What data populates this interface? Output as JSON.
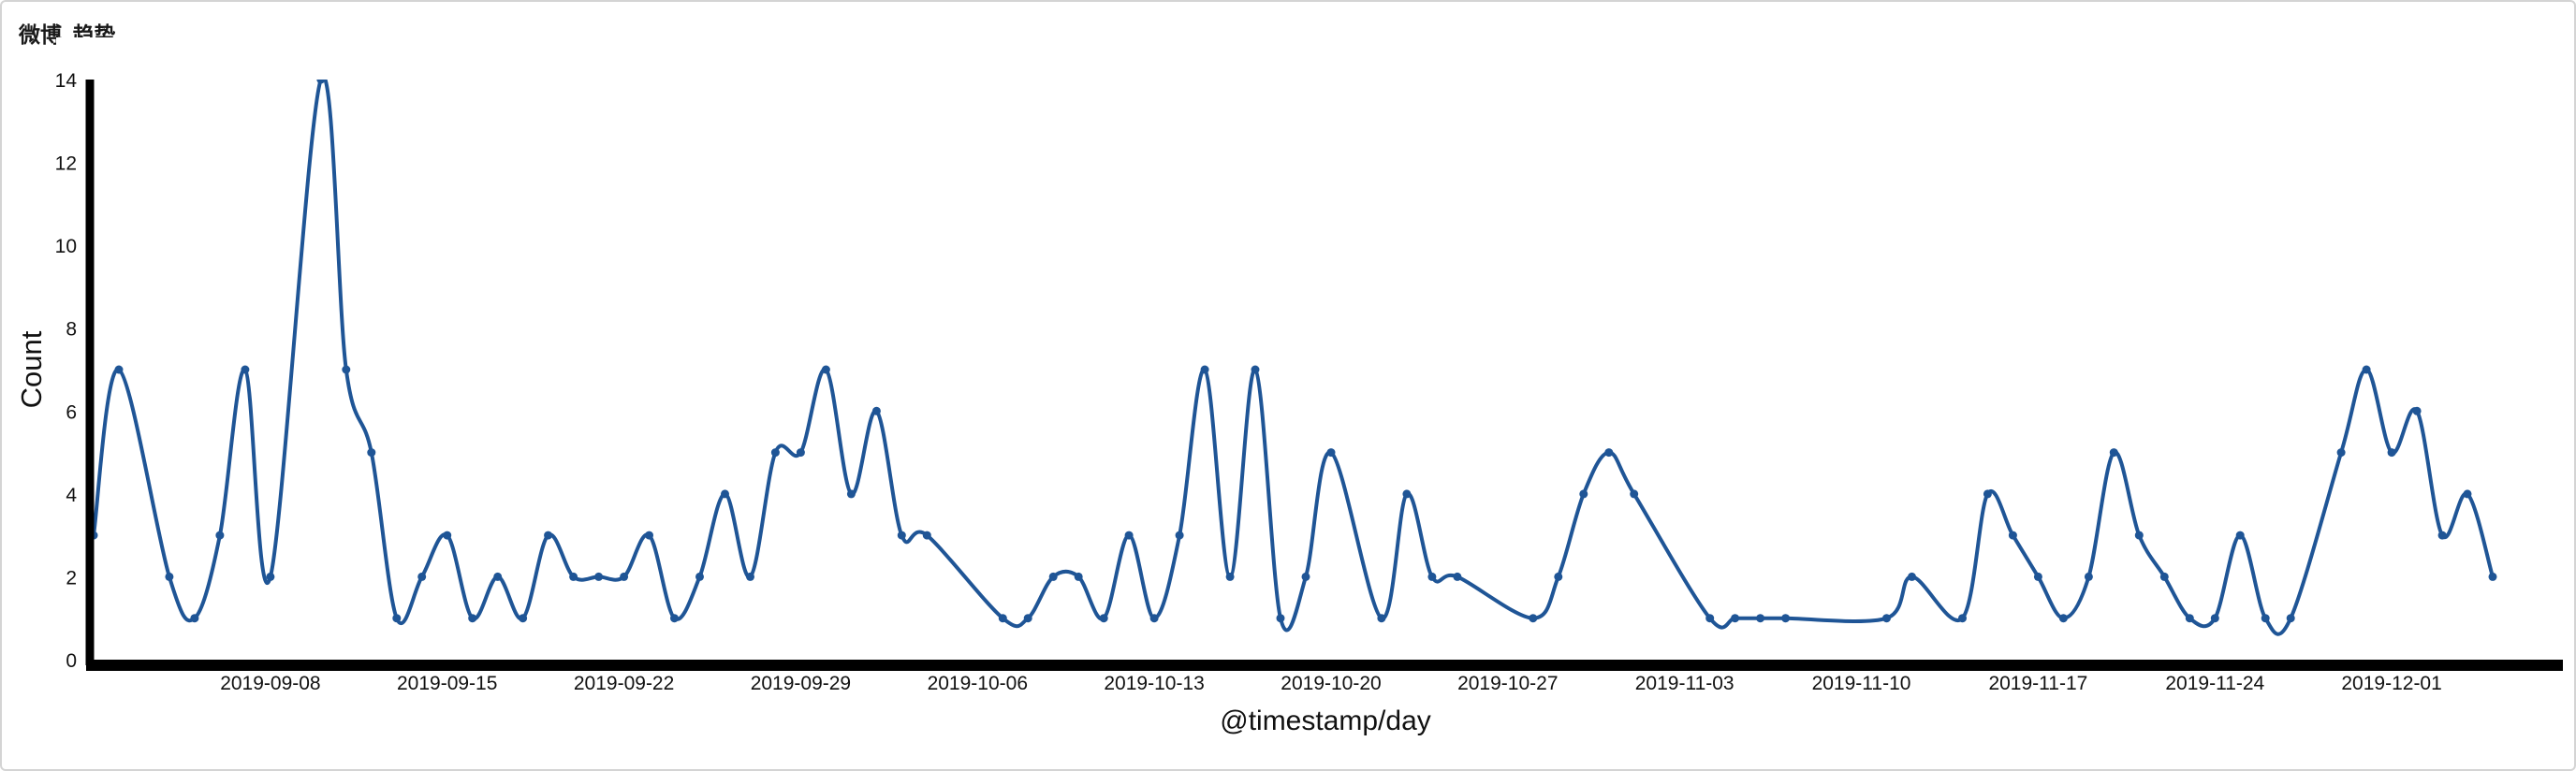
{
  "panel": {
    "title": "微博_趋势"
  },
  "colors": {
    "line": "#1f5596",
    "axis": "#000000",
    "text": "#111111"
  },
  "chart_data": {
    "type": "line",
    "title": "微博_趋势",
    "xlabel": "@timestamp/day",
    "ylabel": "Count",
    "ylim": [
      0,
      14
    ],
    "yticks": [
      0,
      2,
      4,
      6,
      8,
      10,
      12,
      14
    ],
    "xlim": [
      "2019-09-01",
      "2019-12-06"
    ],
    "xtick_labels": [
      "2019-09-08",
      "2019-09-15",
      "2019-09-22",
      "2019-09-29",
      "2019-10-06",
      "2019-10-13",
      "2019-10-20",
      "2019-10-27",
      "2019-11-03",
      "2019-11-10",
      "2019-11-17",
      "2019-11-24",
      "2019-12-01"
    ],
    "grid": false,
    "legend": "none",
    "series": [
      {
        "points": [
          [
            "2019-09-01",
            3
          ],
          [
            "2019-09-02",
            7
          ],
          [
            "2019-09-04",
            2
          ],
          [
            "2019-09-05",
            1
          ],
          [
            "2019-09-06",
            3
          ],
          [
            "2019-09-07",
            7
          ],
          [
            "2019-09-08",
            2
          ],
          [
            "2019-09-10",
            14
          ],
          [
            "2019-09-11",
            7
          ],
          [
            "2019-09-12",
            5
          ],
          [
            "2019-09-13",
            1
          ],
          [
            "2019-09-14",
            2
          ],
          [
            "2019-09-15",
            3
          ],
          [
            "2019-09-16",
            1
          ],
          [
            "2019-09-17",
            2
          ],
          [
            "2019-09-18",
            1
          ],
          [
            "2019-09-19",
            3
          ],
          [
            "2019-09-20",
            2
          ],
          [
            "2019-09-21",
            2
          ],
          [
            "2019-09-22",
            2
          ],
          [
            "2019-09-23",
            3
          ],
          [
            "2019-09-24",
            1
          ],
          [
            "2019-09-25",
            2
          ],
          [
            "2019-09-26",
            4
          ],
          [
            "2019-09-27",
            2
          ],
          [
            "2019-09-28",
            5
          ],
          [
            "2019-09-29",
            5
          ],
          [
            "2019-09-30",
            7
          ],
          [
            "2019-10-01",
            4
          ],
          [
            "2019-10-02",
            6
          ],
          [
            "2019-10-03",
            3
          ],
          [
            "2019-10-04",
            3
          ],
          [
            "2019-10-07",
            1
          ],
          [
            "2019-10-08",
            1
          ],
          [
            "2019-10-09",
            2
          ],
          [
            "2019-10-10",
            2
          ],
          [
            "2019-10-11",
            1
          ],
          [
            "2019-10-12",
            3
          ],
          [
            "2019-10-13",
            1
          ],
          [
            "2019-10-14",
            3
          ],
          [
            "2019-10-15",
            7
          ],
          [
            "2019-10-16",
            2
          ],
          [
            "2019-10-17",
            7
          ],
          [
            "2019-10-18",
            1
          ],
          [
            "2019-10-19",
            2
          ],
          [
            "2019-10-20",
            5
          ],
          [
            "2019-10-22",
            1
          ],
          [
            "2019-10-23",
            4
          ],
          [
            "2019-10-24",
            2
          ],
          [
            "2019-10-25",
            2
          ],
          [
            "2019-10-28",
            1
          ],
          [
            "2019-10-29",
            2
          ],
          [
            "2019-10-30",
            4
          ],
          [
            "2019-10-31",
            5
          ],
          [
            "2019-11-01",
            4
          ],
          [
            "2019-11-04",
            1
          ],
          [
            "2019-11-05",
            1
          ],
          [
            "2019-11-06",
            1
          ],
          [
            "2019-11-07",
            1
          ],
          [
            "2019-11-11",
            1
          ],
          [
            "2019-11-12",
            2
          ],
          [
            "2019-11-14",
            1
          ],
          [
            "2019-11-15",
            4
          ],
          [
            "2019-11-16",
            3
          ],
          [
            "2019-11-17",
            2
          ],
          [
            "2019-11-18",
            1
          ],
          [
            "2019-11-19",
            2
          ],
          [
            "2019-11-20",
            5
          ],
          [
            "2019-11-21",
            3
          ],
          [
            "2019-11-22",
            2
          ],
          [
            "2019-11-23",
            1
          ],
          [
            "2019-11-24",
            1
          ],
          [
            "2019-11-25",
            3
          ],
          [
            "2019-11-26",
            1
          ],
          [
            "2019-11-27",
            1
          ],
          [
            "2019-11-29",
            5
          ],
          [
            "2019-11-30",
            7
          ],
          [
            "2019-12-01",
            5
          ],
          [
            "2019-12-02",
            6
          ],
          [
            "2019-12-03",
            3
          ],
          [
            "2019-12-04",
            4
          ],
          [
            "2019-12-05",
            2
          ]
        ]
      }
    ]
  }
}
